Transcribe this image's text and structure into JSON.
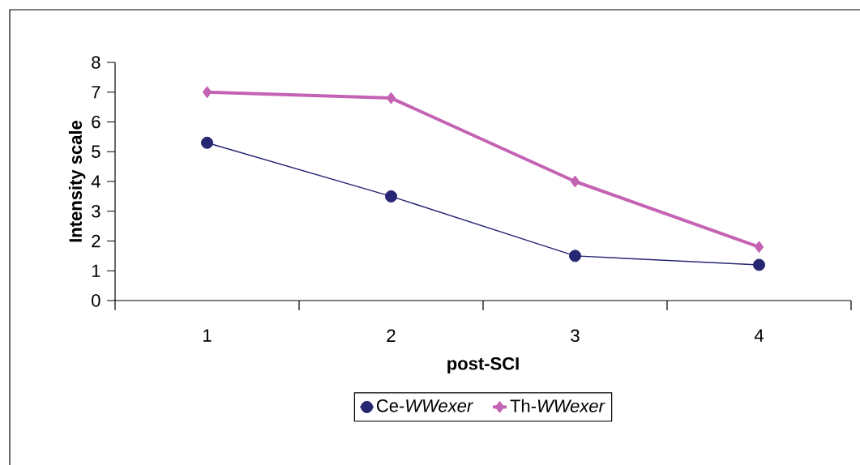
{
  "chart_data": {
    "type": "line",
    "xlabel": "post-SCI",
    "ylabel": "Intensity scale",
    "categories": [
      "1",
      "2",
      "3",
      "4"
    ],
    "series": [
      {
        "name": "Ce-*WWexer*",
        "color": "#262673",
        "marker": "circle",
        "values": [
          5.3,
          3.5,
          1.5,
          1.2
        ]
      },
      {
        "name": "Th-*WWexer*",
        "color": "#c462b4",
        "marker": "diamond",
        "values": [
          7.0,
          6.8,
          4.0,
          1.8
        ]
      }
    ],
    "ylim": [
      0,
      8
    ],
    "yticks": [
      0,
      1,
      2,
      3,
      4,
      5,
      6,
      7,
      8
    ],
    "grid": false,
    "legend": "bottom",
    "line_style": "solid"
  }
}
